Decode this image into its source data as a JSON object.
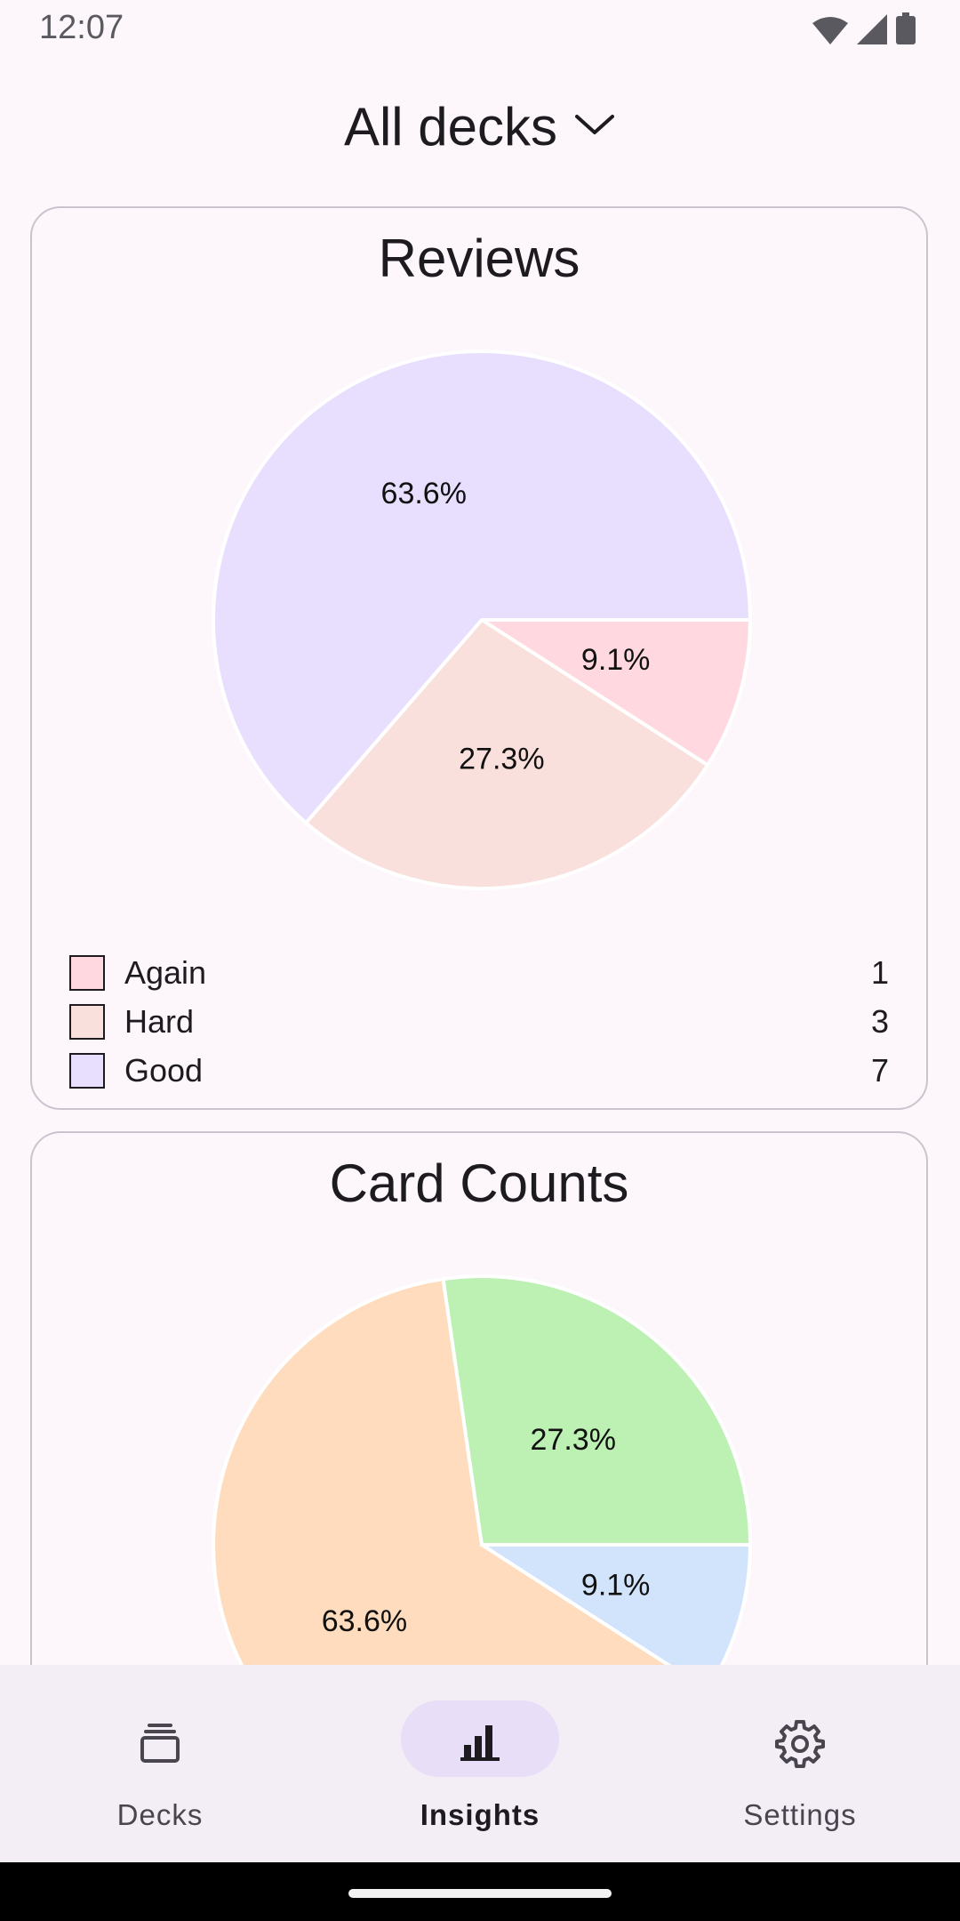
{
  "status_bar": {
    "time": "12:07",
    "icons": [
      "wifi-icon",
      "signal-icon",
      "battery-icon"
    ]
  },
  "header": {
    "deck_selector_label": "All decks",
    "dropdown_icon": "chevron-down-icon"
  },
  "reviews_card": {
    "title": "Reviews",
    "slices": [
      {
        "label": "Again",
        "value": 1,
        "percent_label": "9.1%",
        "color": "#ffd9df"
      },
      {
        "label": "Hard",
        "value": 3,
        "percent_label": "27.3%",
        "color": "#f9e0dc"
      },
      {
        "label": "Good",
        "value": 7,
        "percent_label": "63.6%",
        "color": "#e8defe"
      }
    ],
    "legend": [
      {
        "label": "Again",
        "value": "1",
        "color": "#ffd9df"
      },
      {
        "label": "Hard",
        "value": "3",
        "color": "#f9e0dc"
      },
      {
        "label": "Good",
        "value": "7",
        "color": "#e8defe"
      }
    ]
  },
  "card_counts_card": {
    "title": "Card Counts",
    "slices": [
      {
        "percent_label": "9.1%",
        "value": 9.1,
        "color": "#d2e3fc"
      },
      {
        "percent_label": "63.6%",
        "value": 63.6,
        "color": "#ffdcbd"
      },
      {
        "percent_label": "27.3%",
        "value": 27.3,
        "color": "#bdf0b3"
      }
    ]
  },
  "bottom_nav": {
    "items": [
      {
        "label": "Decks",
        "icon": "cards-stack-icon",
        "active": false
      },
      {
        "label": "Insights",
        "icon": "bar-chart-icon",
        "active": true
      },
      {
        "label": "Settings",
        "icon": "gear-icon",
        "active": false
      }
    ]
  },
  "chart_data": [
    {
      "type": "pie",
      "title": "Reviews",
      "categories": [
        "Again",
        "Hard",
        "Good"
      ],
      "values": [
        1,
        3,
        7
      ],
      "percent_labels": [
        "9.1%",
        "27.3%",
        "63.6%"
      ],
      "colors": [
        "#ffd9df",
        "#f9e0dc",
        "#e8defe"
      ],
      "legend": "bottom"
    },
    {
      "type": "pie",
      "title": "Card Counts",
      "values": [
        9.1,
        63.6,
        27.3
      ],
      "percent_labels": [
        "9.1%",
        "63.6%",
        "27.3%"
      ],
      "colors": [
        "#d2e3fc",
        "#ffdcbd",
        "#bdf0b3"
      ]
    }
  ]
}
